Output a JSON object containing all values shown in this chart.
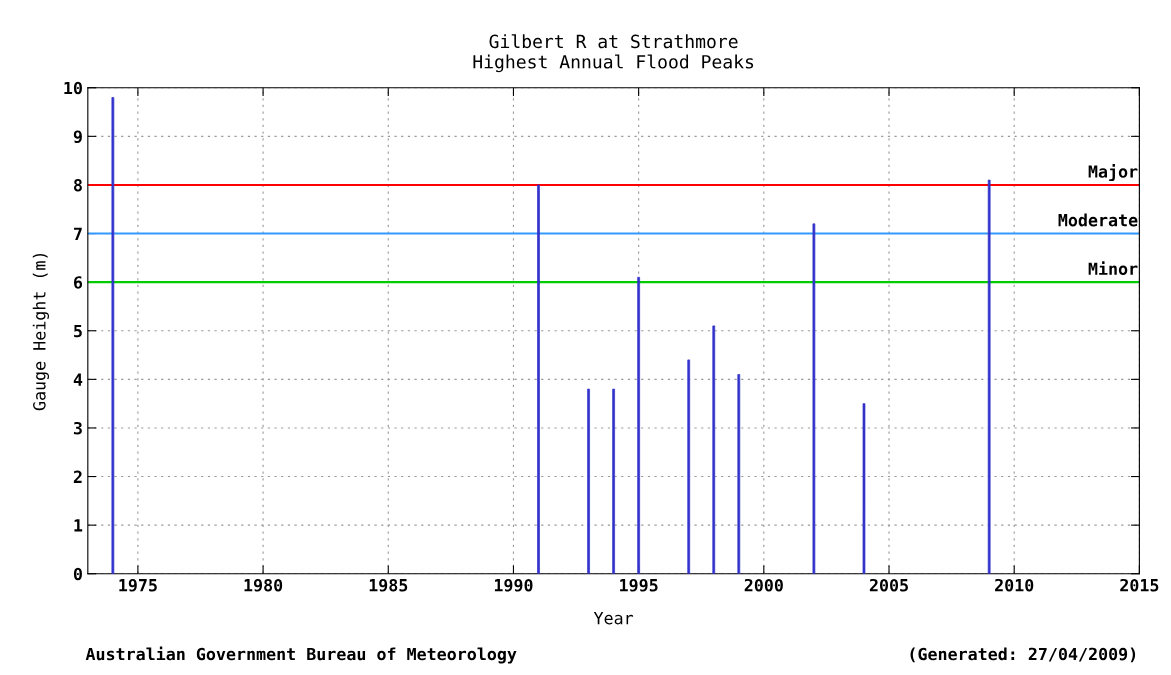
{
  "chart_data": {
    "type": "bar",
    "title": "Gilbert R at Strathmore\nHighest Annual Flood Peaks",
    "xlabel": "Year",
    "ylabel": "Gauge Height (m)",
    "x": [
      1974,
      1991,
      1993,
      1994,
      1995,
      1997,
      1998,
      1999,
      2002,
      2004,
      2009
    ],
    "values": [
      9.8,
      8.0,
      3.8,
      3.8,
      6.1,
      4.4,
      5.1,
      4.1,
      7.2,
      3.5,
      8.1
    ],
    "color": "#3333cc",
    "xlim": [
      1973,
      2015
    ],
    "xticks": [
      1975,
      1980,
      1985,
      1990,
      1995,
      2000,
      2005,
      2010,
      2015
    ],
    "ylim": [
      0,
      10
    ],
    "yticks": [
      0,
      1,
      2,
      3,
      4,
      5,
      6,
      7,
      8,
      9,
      10
    ],
    "grid": true,
    "ref_lines": [
      {
        "axis": "y",
        "value": 8,
        "label": "Major",
        "color": "#ff0000"
      },
      {
        "axis": "y",
        "value": 7,
        "label": "Moderate",
        "color": "#3399ff"
      },
      {
        "axis": "y",
        "value": 6,
        "label": "Minor",
        "color": "#00cc00"
      }
    ],
    "annotations": [
      "Australian Government Bureau of Meteorology",
      "(Generated: 27/04/2009)"
    ]
  }
}
